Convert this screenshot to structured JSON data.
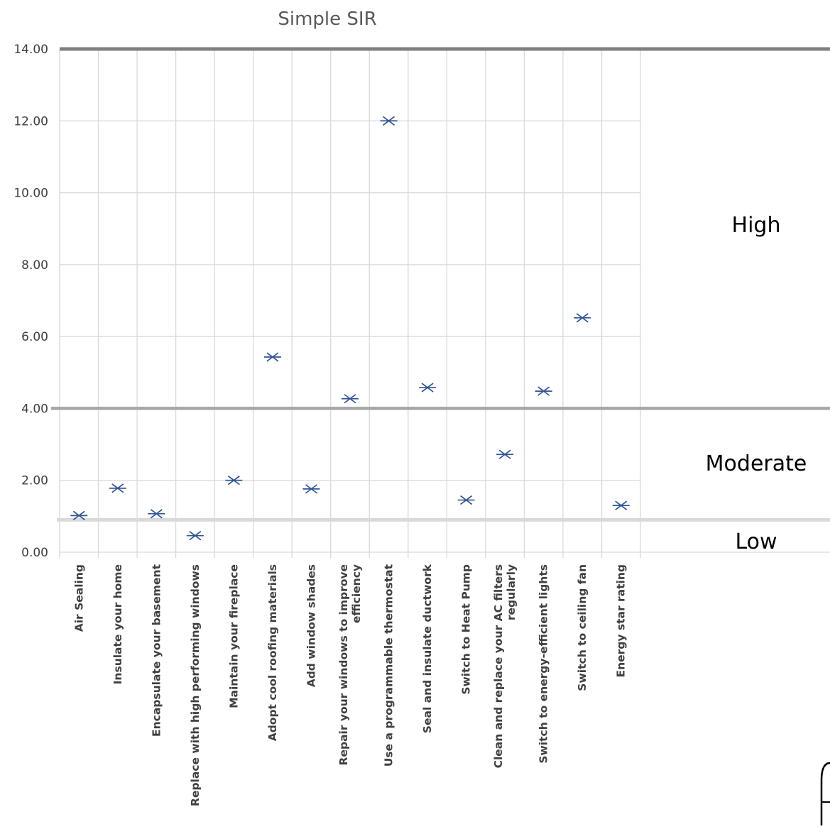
{
  "chart_data": {
    "type": "scatter",
    "title": "Simple SIR",
    "xlabel": "",
    "ylabel": "",
    "categories": [
      "Air Sealing",
      "Insulate your home",
      "Encapsulate your basement",
      "Replace with high performing windows",
      "Maintain your fireplace",
      "Adopt cool roofing materials",
      "Add window shades",
      [
        "Repair your windows to improve",
        "efficiency"
      ],
      "Use a programmable thermostat",
      "Seal and insulate ductwork",
      "Switch to Heat Pump",
      [
        "Clean and replace your AC filters",
        "regularly"
      ],
      "Switch to energy-efficient lights",
      "Switch to ceiling fan",
      "Energy star rating"
    ],
    "values": [
      1.02,
      1.78,
      1.07,
      0.46,
      2.0,
      5.43,
      1.76,
      4.27,
      12.0,
      4.58,
      1.45,
      2.72,
      4.48,
      6.52,
      1.3
    ],
    "ylim": [
      0,
      14
    ],
    "yticks": [
      "0.00",
      "2.00",
      "4.00",
      "6.00",
      "8.00",
      "10.00",
      "12.00",
      "14.00"
    ],
    "grid": true,
    "marker_color": "#2f5597",
    "thresholds": [
      {
        "label": "High",
        "value": 14.0,
        "color": "#7f7f7f"
      },
      {
        "label": "Moderate",
        "value": 4.0,
        "color": "#a6a6a6"
      },
      {
        "label": "Low",
        "value": 0.9,
        "color": "#d9d9d9"
      }
    ]
  }
}
